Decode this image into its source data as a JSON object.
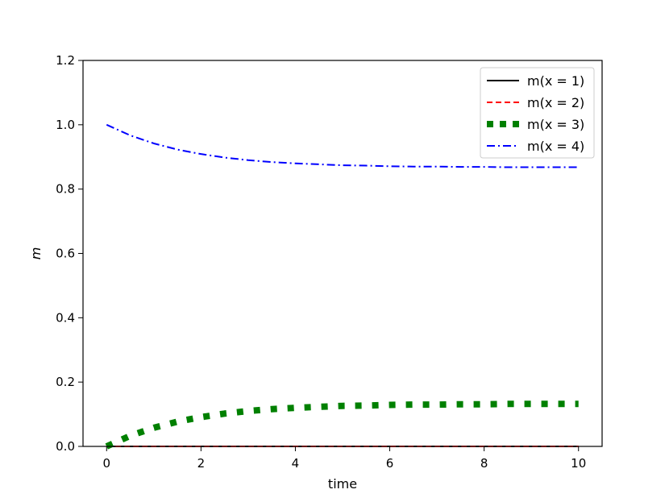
{
  "chart_data": {
    "type": "line",
    "xlabel": "time",
    "ylabel": "m",
    "xlim": [
      -0.5,
      10.5
    ],
    "ylim": [
      0.0,
      1.2
    ],
    "xticks": [
      "0",
      "2",
      "4",
      "6",
      "8",
      "10"
    ],
    "xtick_values": [
      0,
      2,
      4,
      6,
      8,
      10
    ],
    "yticks": [
      "0.0",
      "0.2",
      "0.4",
      "0.6",
      "0.8",
      "1.0",
      "1.2"
    ],
    "ytick_values": [
      0.0,
      0.2,
      0.4,
      0.6,
      0.8,
      1.0,
      1.2
    ],
    "grid": false,
    "legend_position": "top-right",
    "series": [
      {
        "name": "m(x = 1)",
        "color": "#000000",
        "style": "solid",
        "x": [
          0,
          1,
          2,
          3,
          4,
          5,
          6,
          7,
          8,
          9,
          10
        ],
        "y": [
          0,
          0,
          0,
          0,
          0,
          0,
          0,
          0,
          0,
          0,
          0
        ]
      },
      {
        "name": "m(x = 2)",
        "color": "#ff0000",
        "style": "dashed",
        "x": [
          0,
          1,
          2,
          3,
          4,
          5,
          6,
          7,
          8,
          9,
          10
        ],
        "y": [
          0,
          0,
          0,
          0,
          0,
          0,
          0,
          0,
          0,
          0,
          0
        ]
      },
      {
        "name": "m(x = 3)",
        "color": "#008000",
        "style": "dotted",
        "x": [
          0,
          0.5,
          1,
          1.5,
          2,
          2.5,
          3,
          3.5,
          4,
          4.5,
          5,
          5.5,
          6,
          6.5,
          7,
          7.5,
          8,
          8.5,
          9,
          9.5,
          10
        ],
        "y": [
          0.0,
          0.033,
          0.058,
          0.077,
          0.091,
          0.102,
          0.11,
          0.116,
          0.12,
          0.123,
          0.126,
          0.127,
          0.129,
          0.13,
          0.13,
          0.131,
          0.131,
          0.132,
          0.132,
          0.132,
          0.132
        ]
      },
      {
        "name": "m(x = 4)",
        "color": "#0000ff",
        "style": "dashdot",
        "x": [
          0,
          0.5,
          1,
          1.5,
          2,
          2.5,
          3,
          3.5,
          4,
          4.5,
          5,
          5.5,
          6,
          6.5,
          7,
          7.5,
          8,
          8.5,
          9,
          9.5,
          10
        ],
        "y": [
          1.0,
          0.967,
          0.942,
          0.923,
          0.909,
          0.898,
          0.89,
          0.884,
          0.88,
          0.877,
          0.874,
          0.873,
          0.871,
          0.87,
          0.87,
          0.869,
          0.869,
          0.868,
          0.868,
          0.868,
          0.868
        ]
      }
    ]
  }
}
